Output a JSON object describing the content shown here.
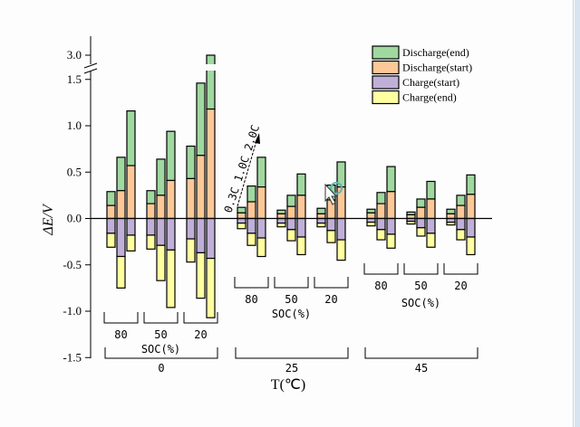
{
  "chart_data": {
    "type": "bar",
    "subtype": "stacked-diverging-grouped",
    "title": "",
    "ylabel": "ΔE/V",
    "xlabel": "T(℃)",
    "ylim": [
      -1.5,
      3.0
    ],
    "axis_break": [
      1.5,
      3.0
    ],
    "yticks": [
      -1.5,
      -1.0,
      -0.5,
      0.0,
      0.5,
      1.0,
      1.5,
      3.0
    ],
    "ytick_labels": [
      "-1.5",
      "-1.0",
      "-0.5",
      "0.0",
      "0.5",
      "1.0",
      "1.5",
      "3.0"
    ],
    "grid": false,
    "legend_position": "top-right",
    "legend": [
      {
        "name": "Discharge(end)",
        "color": "#a0d8a0"
      },
      {
        "name": "Discharge(start)",
        "color": "#fcc898"
      },
      {
        "name": "Charge(start)",
        "color": "#c0b0d8"
      },
      {
        "name": "Charge(end)",
        "color": "#ffffa0"
      }
    ],
    "temperature_groups": [
      {
        "label": "0",
        "soc_axis_label": "SOC(%)",
        "soc_groups": [
          {
            "label": "80",
            "bars": [
              {
                "rate": "0.3C",
                "discharge_end": 0.29,
                "discharge_start": 0.14,
                "charge_start": -0.16,
                "charge_end": -0.31
              },
              {
                "rate": "1.0C",
                "discharge_end": 0.66,
                "discharge_start": 0.3,
                "charge_start": -0.41,
                "charge_end": -0.75
              },
              {
                "rate": "2.0C",
                "discharge_end": 1.16,
                "discharge_start": 0.57,
                "charge_start": -0.18,
                "charge_end": -0.35
              }
            ]
          },
          {
            "label": "50",
            "bars": [
              {
                "rate": "0.3C",
                "discharge_end": 0.3,
                "discharge_start": 0.16,
                "charge_start": -0.18,
                "charge_end": -0.33
              },
              {
                "rate": "1.0C",
                "discharge_end": 0.64,
                "discharge_start": 0.25,
                "charge_start": -0.29,
                "charge_end": -0.67
              },
              {
                "rate": "2.0C",
                "discharge_end": 0.94,
                "discharge_start": 0.41,
                "charge_start": -0.34,
                "charge_end": -0.96
              }
            ]
          },
          {
            "label": "20",
            "bars": [
              {
                "rate": "0.3C",
                "discharge_end": 0.78,
                "discharge_start": 0.43,
                "charge_start": -0.22,
                "charge_end": -0.47
              },
              {
                "rate": "1.0C",
                "discharge_end": 1.46,
                "discharge_start": 0.68,
                "charge_start": -0.37,
                "charge_end": -0.86
              },
              {
                "rate": "2.0C",
                "discharge_end": 3.0,
                "discharge_start": 1.18,
                "charge_start": -0.43,
                "charge_end": -1.07
              }
            ]
          }
        ]
      },
      {
        "label": "25",
        "soc_axis_label": "SOC(%)",
        "soc_groups": [
          {
            "label": "80",
            "bars": [
              {
                "rate": "0.3C",
                "discharge_end": 0.12,
                "discharge_start": 0.06,
                "charge_start": -0.05,
                "charge_end": -0.11
              },
              {
                "rate": "1.0C",
                "discharge_end": 0.35,
                "discharge_start": 0.18,
                "charge_start": -0.16,
                "charge_end": -0.29
              },
              {
                "rate": "2.0C",
                "discharge_end": 0.66,
                "discharge_start": 0.34,
                "charge_start": -0.21,
                "charge_end": -0.41
              }
            ]
          },
          {
            "label": "50",
            "bars": [
              {
                "rate": "0.3C",
                "discharge_end": 0.09,
                "discharge_start": 0.05,
                "charge_start": -0.05,
                "charge_end": -0.09
              },
              {
                "rate": "1.0C",
                "discharge_end": 0.25,
                "discharge_start": 0.13,
                "charge_start": -0.12,
                "charge_end": -0.24
              },
              {
                "rate": "2.0C",
                "discharge_end": 0.48,
                "discharge_start": 0.25,
                "charge_start": -0.2,
                "charge_end": -0.39
              }
            ]
          },
          {
            "label": "20",
            "bars": [
              {
                "rate": "0.3C",
                "discharge_end": 0.11,
                "discharge_start": 0.05,
                "charge_start": -0.05,
                "charge_end": -0.09
              },
              {
                "rate": "1.0C",
                "discharge_end": 0.36,
                "discharge_start": 0.2,
                "charge_start": -0.13,
                "charge_end": -0.26
              },
              {
                "rate": "2.0C",
                "discharge_end": 0.61,
                "discharge_start": 0.34,
                "charge_start": -0.23,
                "charge_end": -0.45
              }
            ]
          }
        ]
      },
      {
        "label": "45",
        "soc_axis_label": "SOC(%)",
        "soc_groups": [
          {
            "label": "80",
            "bars": [
              {
                "rate": "0.3C",
                "discharge_end": 0.1,
                "discharge_start": 0.06,
                "charge_start": -0.04,
                "charge_end": -0.08
              },
              {
                "rate": "1.0C",
                "discharge_end": 0.28,
                "discharge_start": 0.16,
                "charge_start": -0.12,
                "charge_end": -0.23
              },
              {
                "rate": "2.0C",
                "discharge_end": 0.56,
                "discharge_start": 0.29,
                "charge_start": -0.17,
                "charge_end": -0.32
              }
            ]
          },
          {
            "label": "50",
            "bars": [
              {
                "rate": "0.3C",
                "discharge_end": 0.07,
                "discharge_start": 0.04,
                "charge_start": -0.03,
                "charge_end": -0.06
              },
              {
                "rate": "1.0C",
                "discharge_end": 0.21,
                "discharge_start": 0.12,
                "charge_start": -0.1,
                "charge_end": -0.19
              },
              {
                "rate": "2.0C",
                "discharge_end": 0.4,
                "discharge_start": 0.21,
                "charge_start": -0.16,
                "charge_end": -0.31
              }
            ]
          },
          {
            "label": "20",
            "bars": [
              {
                "rate": "0.3C",
                "discharge_end": 0.1,
                "discharge_start": 0.05,
                "charge_start": -0.04,
                "charge_end": -0.07
              },
              {
                "rate": "1.0C",
                "discharge_end": 0.25,
                "discharge_start": 0.14,
                "charge_start": -0.12,
                "charge_end": -0.23
              },
              {
                "rate": "2.0C",
                "discharge_end": 0.47,
                "discharge_start": 0.26,
                "charge_start": -0.2,
                "charge_end": -0.39
              }
            ]
          }
        ]
      }
    ],
    "annotation": "0.3C 1.0C 2.0C"
  }
}
